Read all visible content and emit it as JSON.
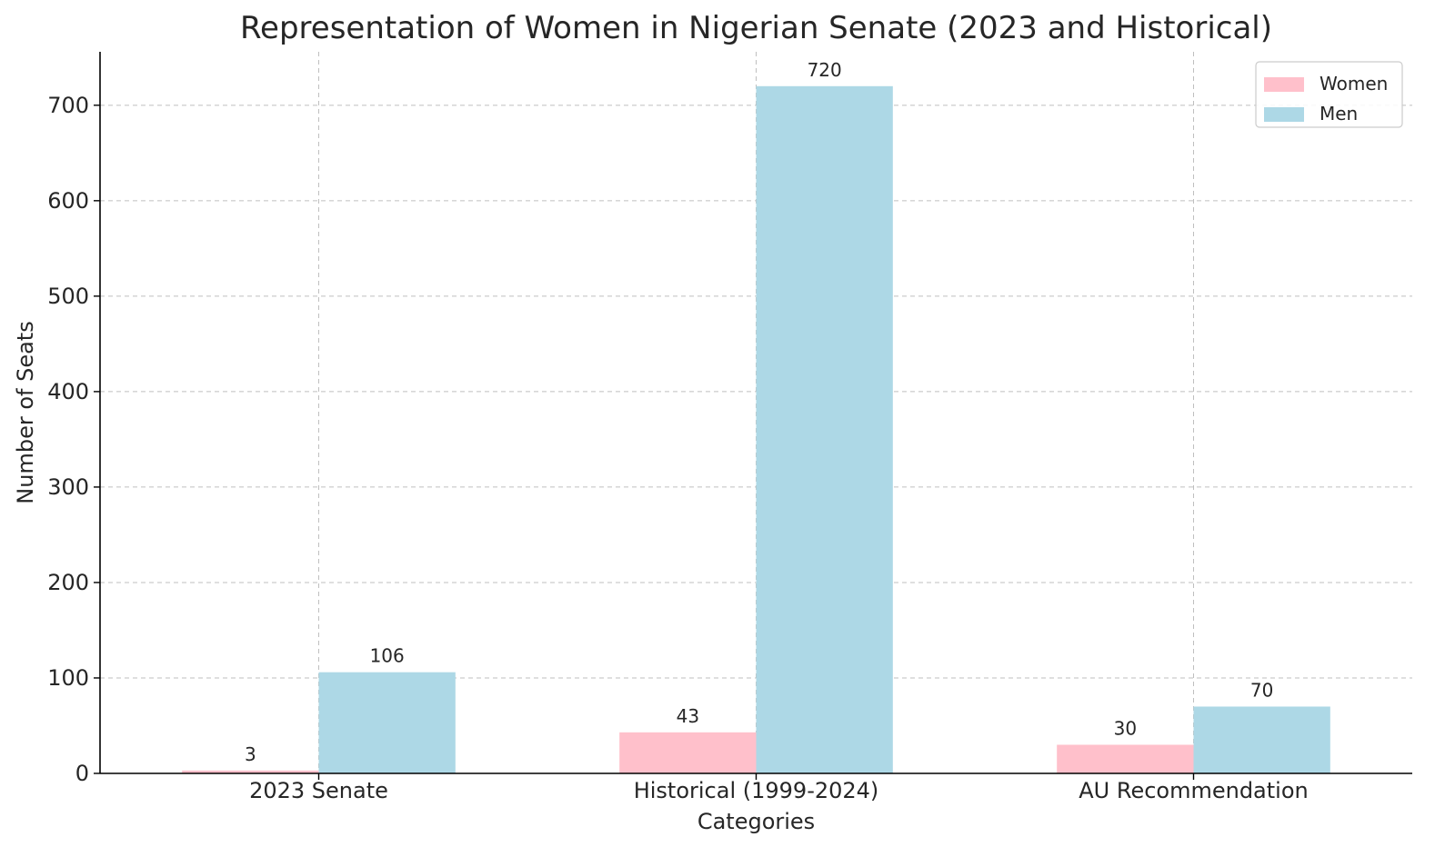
{
  "chart_data": {
    "type": "bar",
    "title": "Representation of Women in Nigerian Senate (2023 and Historical)",
    "xlabel": "Categories",
    "ylabel": "Number of Seats",
    "categories": [
      "2023 Senate",
      "Historical (1999-2024)",
      "AU Recommendation"
    ],
    "series": [
      {
        "name": "Women",
        "color": "#ffc0cb",
        "values": [
          3,
          43,
          30
        ]
      },
      {
        "name": "Men",
        "color": "#add8e6",
        "values": [
          106,
          720,
          70
        ]
      }
    ],
    "ylim": [
      0,
      756
    ],
    "yticks": [
      0,
      100,
      200,
      300,
      400,
      500,
      600,
      700
    ],
    "grid": true,
    "legend": "top-right"
  }
}
